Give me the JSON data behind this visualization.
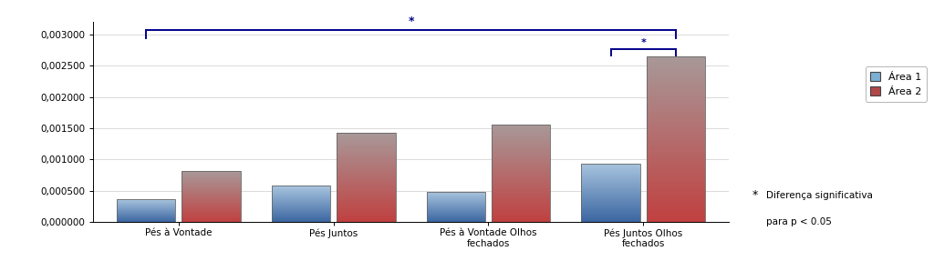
{
  "categories": [
    "Pés à Vontade",
    "Pés Juntos",
    "Pés à Vontade Olhos\nfechados",
    "Pés Juntos Olhos\nfechados"
  ],
  "area1_values": [
    0.00037,
    0.00058,
    0.00049,
    0.00094
  ],
  "area2_values": [
    0.00082,
    0.00143,
    0.00156,
    0.00265
  ],
  "area1_color_top": "#a8c4de",
  "area1_color_bottom": "#3a65a0",
  "area2_color_top": "#a89898",
  "area2_color_bottom": "#c04040",
  "ylim": [
    0.0,
    0.0032
  ],
  "yticks": [
    0.0,
    0.0005,
    0.001,
    0.0015,
    0.002,
    0.0025,
    0.003
  ],
  "ytick_labels": [
    "0,000000",
    "0,000500",
    "0,001000",
    "0,001500",
    "0,002000",
    "0,002500",
    "0,003000"
  ],
  "legend_labels": [
    "Área 1",
    "Área 2"
  ],
  "legend_area1_color": "#7bafd4",
  "legend_area2_color": "#b04848",
  "annotation_star": "*",
  "annotation_line1": "Diferença significativa",
  "annotation_line2": "para p < 0.05",
  "bracket_color": "#00008B",
  "bar_width": 0.38,
  "bar_gap": 0.04,
  "group_positions": [
    0,
    1,
    2,
    3
  ]
}
